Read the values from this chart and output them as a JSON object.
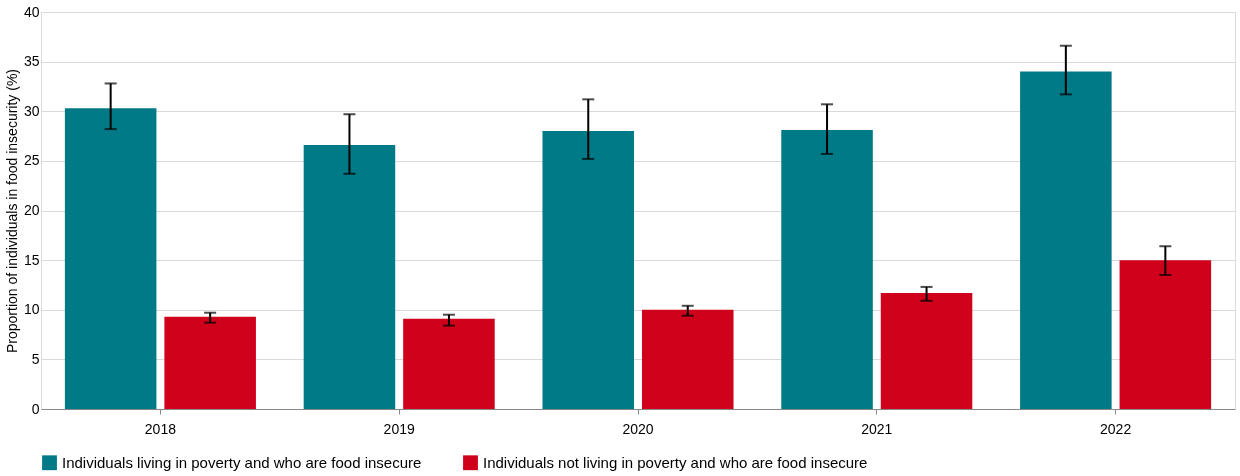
{
  "chart_data": {
    "type": "bar",
    "ylabel": "Proportion of individuals in food insecurity (%)",
    "categories": [
      "2018",
      "2019",
      "2020",
      "2021",
      "2022"
    ],
    "series": [
      {
        "name": "Individuals living in poverty and who are food insecure",
        "color": "#007a87",
        "values": [
          30.3,
          26.6,
          28.0,
          28.1,
          34.0
        ],
        "errors": [
          [
            28.2,
            32.8
          ],
          [
            23.7,
            29.7
          ],
          [
            25.2,
            31.2
          ],
          [
            25.7,
            30.7
          ],
          [
            31.7,
            36.6
          ]
        ]
      },
      {
        "name": "Individuals not living in poverty and who are food insecure",
        "color": "#d0021b",
        "values": [
          9.3,
          9.1,
          10.0,
          11.7,
          15.0
        ],
        "errors": [
          [
            8.7,
            9.7
          ],
          [
            8.4,
            9.5
          ],
          [
            9.4,
            10.4
          ],
          [
            10.9,
            12.3
          ],
          [
            13.5,
            16.4
          ]
        ]
      }
    ],
    "ylim": [
      0,
      40
    ],
    "yticks": [
      0,
      5,
      10,
      15,
      20,
      25,
      30,
      35,
      40
    ],
    "grid": "y",
    "legend": "bottom"
  }
}
